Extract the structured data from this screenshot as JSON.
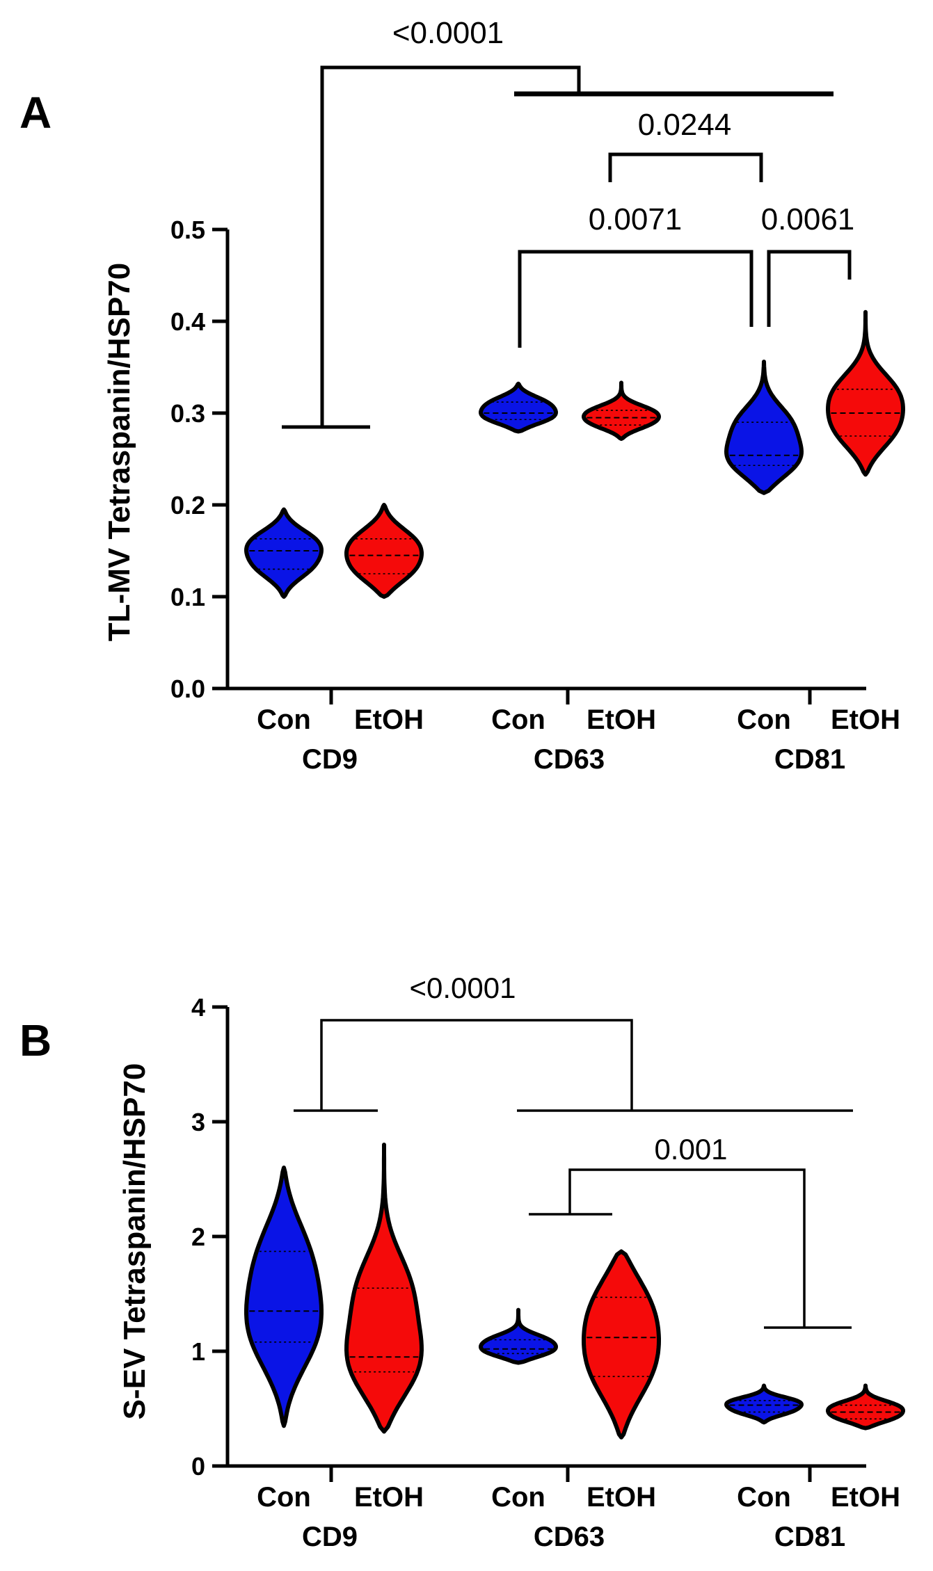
{
  "colors": {
    "con": "#0a14e6",
    "etoh": "#f50a0a"
  },
  "chart_data": [
    {
      "panel": "A",
      "type": "violin",
      "ylabel": "TL-MV Tetraspanin/HSP70",
      "ylim": [
        0,
        0.5
      ],
      "yticks": [
        "0.0",
        "0.1",
        "0.2",
        "0.3",
        "0.4",
        "0.5"
      ],
      "conditions": [
        "Con",
        "EtOH"
      ],
      "groups": [
        "CD9",
        "CD63",
        "CD81"
      ],
      "violins": [
        {
          "group": "CD9",
          "condition": "Con",
          "min": 0.1,
          "max": 0.195,
          "q1": 0.13,
          "median": 0.15,
          "q3": 0.163
        },
        {
          "group": "CD9",
          "condition": "EtOH",
          "min": 0.1,
          "max": 0.2,
          "q1": 0.125,
          "median": 0.145,
          "q3": 0.163
        },
        {
          "group": "CD63",
          "condition": "Con",
          "min": 0.28,
          "max": 0.332,
          "q1": 0.293,
          "median": 0.3,
          "q3": 0.312
        },
        {
          "group": "CD63",
          "condition": "EtOH",
          "min": 0.272,
          "max": 0.333,
          "q1": 0.287,
          "median": 0.295,
          "q3": 0.303
        },
        {
          "group": "CD81",
          "condition": "Con",
          "min": 0.213,
          "max": 0.356,
          "q1": 0.243,
          "median": 0.254,
          "q3": 0.29
        },
        {
          "group": "CD81",
          "condition": "EtOH",
          "min": 0.233,
          "max": 0.41,
          "q1": 0.275,
          "median": 0.3,
          "q3": 0.326
        }
      ],
      "comparisons": [
        "<0.0001",
        "0.0244",
        "0.0071",
        "0.0061"
      ]
    },
    {
      "panel": "B",
      "type": "violin",
      "ylabel": "S-EV Tetraspanin/HSP70",
      "ylim": [
        0,
        4
      ],
      "yticks": [
        "0",
        "1",
        "2",
        "3",
        "4"
      ],
      "conditions": [
        "Con",
        "EtOH"
      ],
      "groups": [
        "CD9",
        "CD63",
        "CD81"
      ],
      "violins": [
        {
          "group": "CD9",
          "condition": "Con",
          "min": 0.35,
          "max": 2.6,
          "q1": 1.08,
          "median": 1.35,
          "q3": 1.87
        },
        {
          "group": "CD9",
          "condition": "EtOH",
          "min": 0.3,
          "max": 2.8,
          "q1": 0.82,
          "median": 0.95,
          "q3": 1.55
        },
        {
          "group": "CD63",
          "condition": "Con",
          "min": 0.9,
          "max": 1.36,
          "q1": 0.98,
          "median": 1.02,
          "q3": 1.1
        },
        {
          "group": "CD63",
          "condition": "EtOH",
          "min": 0.25,
          "max": 1.87,
          "q1": 0.78,
          "median": 1.12,
          "q3": 1.47
        },
        {
          "group": "CD81",
          "condition": "Con",
          "min": 0.38,
          "max": 0.7,
          "q1": 0.47,
          "median": 0.53,
          "q3": 0.57
        },
        {
          "group": "CD81",
          "condition": "EtOH",
          "min": 0.33,
          "max": 0.7,
          "q1": 0.41,
          "median": 0.47,
          "q3": 0.53
        }
      ],
      "comparisons": [
        "<0.0001",
        "0.001"
      ]
    }
  ]
}
